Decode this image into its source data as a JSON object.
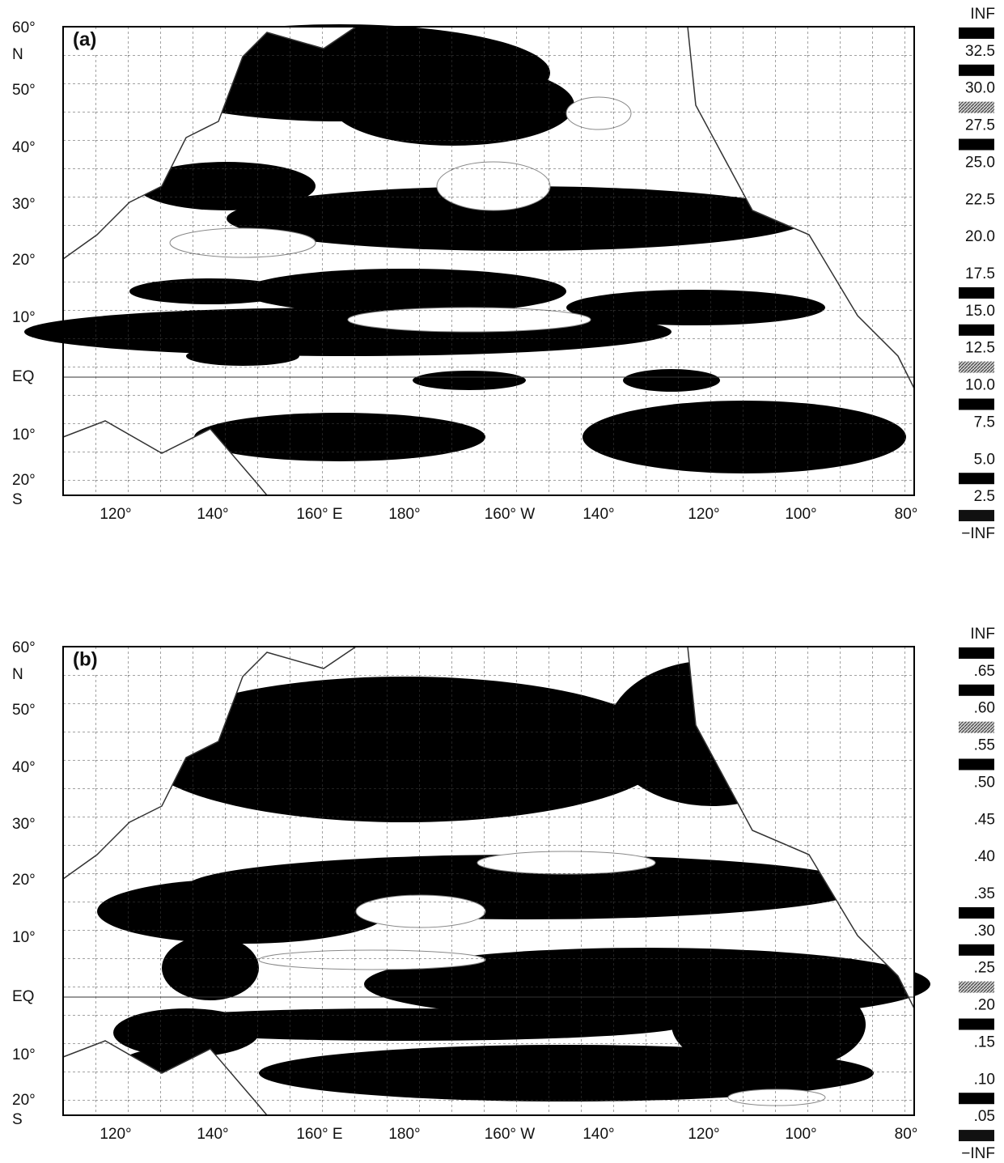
{
  "panels": [
    {
      "label": "(a)",
      "lat_labels": [
        "60°",
        "N",
        "50°",
        "40°",
        "30°",
        "20°",
        "10°",
        "EQ",
        "10°",
        "20°",
        "S"
      ],
      "lon_labels": [
        "120°",
        "140°",
        "160°  E",
        "180°",
        "160°  W",
        "140°",
        "120°",
        "100°",
        "80°"
      ],
      "legend_labels": [
        "INF",
        "32.5",
        "30.0",
        "27.5",
        "25.0",
        "22.5",
        "20.0",
        "17.5",
        "15.0",
        "12.5",
        "10.0",
        "7.5",
        "5.0",
        "2.5",
        "−INF"
      ],
      "swatch_colors": [
        "#000",
        "#000",
        "#999",
        "#000",
        "#fff",
        "#fff",
        "#fff",
        "#000",
        "#000",
        "#777",
        "#000",
        "#fff",
        "#000",
        "#111"
      ]
    },
    {
      "label": "(b)",
      "lat_labels": [
        "60°",
        "N",
        "50°",
        "40°",
        "30°",
        "20°",
        "10°",
        "EQ",
        "10°",
        "20°",
        "S"
      ],
      "lon_labels": [
        "120°",
        "140°",
        "160°  E",
        "180°",
        "160°  W",
        "140°",
        "120°",
        "100°",
        "80°"
      ],
      "legend_labels": [
        "INF",
        ".65",
        ".60",
        ".55",
        ".50",
        ".45",
        ".40",
        ".35",
        ".30",
        ".25",
        ".20",
        ".15",
        ".10",
        ".05",
        "−INF"
      ],
      "swatch_colors": [
        "#000",
        "#000",
        "#999",
        "#000",
        "#fff",
        "#fff",
        "#fff",
        "#000",
        "#000",
        "#777",
        "#000",
        "#fff",
        "#000",
        "#111"
      ]
    }
  ]
}
